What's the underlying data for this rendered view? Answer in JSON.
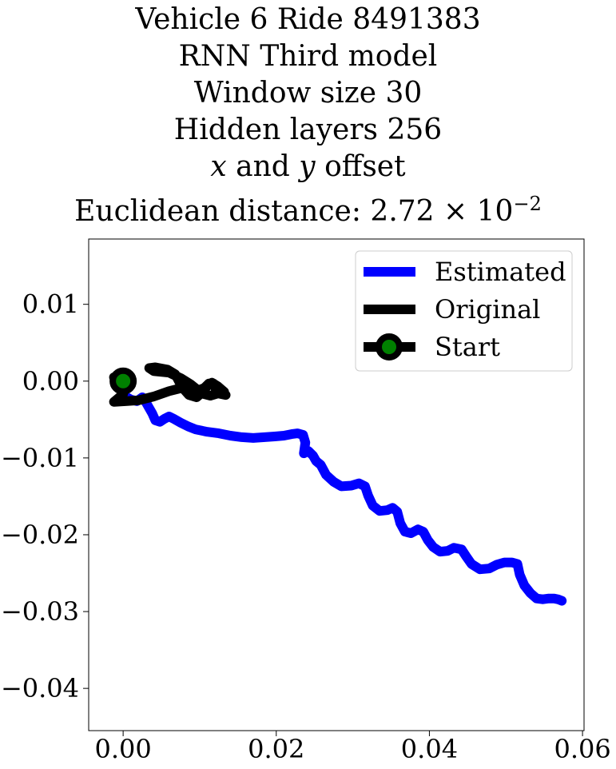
{
  "chart_data": {
    "type": "line",
    "title_lines": [
      "Vehicle 6 Ride 8491383",
      "RNN Third model",
      "Window size 30",
      "Hidden layers 256",
      "x and y offset",
      "Euclidean distance: 2.72 × 10^-2"
    ],
    "title": {
      "vehicle": "Vehicle 6 Ride 8491383",
      "model": "RNN Third model",
      "window": "Window size 30",
      "hidden": "Hidden layers 256",
      "offset_x": "x",
      "offset_and": " and ",
      "offset_y": "y",
      "offset_suffix": " offset",
      "distance_prefix": "Euclidean distance: 2.72 × 10",
      "distance_exp": "−2"
    },
    "xlabel": "",
    "ylabel": "",
    "xlim": [
      -0.0045,
      0.0602
    ],
    "ylim": [
      -0.0455,
      0.0185
    ],
    "xticks": [
      0.0,
      0.02,
      0.04,
      0.06
    ],
    "xtick_labels": [
      "0.00",
      "0.02",
      "0.04",
      "0.06"
    ],
    "yticks": [
      0.01,
      0.0,
      -0.01,
      -0.02,
      -0.03,
      -0.04
    ],
    "ytick_labels": [
      "0.01",
      "0.00",
      "−0.01",
      "−0.02",
      "−0.03",
      "−0.04"
    ],
    "grid": false,
    "legend_position": "top-right",
    "series": [
      {
        "name": "Estimated",
        "color": "#0000ff",
        "points": [
          [
            0.0,
            -0.0018
          ],
          [
            0.001,
            -0.0024
          ],
          [
            0.0018,
            -0.0026
          ],
          [
            0.0025,
            -0.0021
          ],
          [
            0.003,
            -0.0028
          ],
          [
            0.0034,
            -0.0035
          ],
          [
            0.0038,
            -0.0042
          ],
          [
            0.0042,
            -0.0051
          ],
          [
            0.0048,
            -0.0053
          ],
          [
            0.0054,
            -0.0049
          ],
          [
            0.006,
            -0.0046
          ],
          [
            0.0066,
            -0.0049
          ],
          [
            0.0075,
            -0.0054
          ],
          [
            0.0085,
            -0.0059
          ],
          [
            0.0095,
            -0.0063
          ],
          [
            0.011,
            -0.0066
          ],
          [
            0.0125,
            -0.0068
          ],
          [
            0.014,
            -0.0071
          ],
          [
            0.0155,
            -0.0073
          ],
          [
            0.017,
            -0.0074
          ],
          [
            0.0185,
            -0.0073
          ],
          [
            0.0198,
            -0.0072
          ],
          [
            0.021,
            -0.0071
          ],
          [
            0.022,
            -0.0069
          ],
          [
            0.0228,
            -0.0068
          ],
          [
            0.0235,
            -0.007
          ],
          [
            0.0238,
            -0.008
          ],
          [
            0.0236,
            -0.0094
          ],
          [
            0.0242,
            -0.0091
          ],
          [
            0.0248,
            -0.0097
          ],
          [
            0.0252,
            -0.0104
          ],
          [
            0.0258,
            -0.0109
          ],
          [
            0.0265,
            -0.0122
          ],
          [
            0.0275,
            -0.0131
          ],
          [
            0.0285,
            -0.0137
          ],
          [
            0.0298,
            -0.0136
          ],
          [
            0.0308,
            -0.0133
          ],
          [
            0.0316,
            -0.0137
          ],
          [
            0.032,
            -0.0149
          ],
          [
            0.0326,
            -0.0162
          ],
          [
            0.0335,
            -0.0169
          ],
          [
            0.0345,
            -0.0168
          ],
          [
            0.0352,
            -0.0165
          ],
          [
            0.0358,
            -0.017
          ],
          [
            0.0362,
            -0.0185
          ],
          [
            0.0368,
            -0.0196
          ],
          [
            0.0376,
            -0.0198
          ],
          [
            0.0385,
            -0.0193
          ],
          [
            0.0392,
            -0.0196
          ],
          [
            0.0398,
            -0.0207
          ],
          [
            0.0405,
            -0.0216
          ],
          [
            0.0414,
            -0.0222
          ],
          [
            0.0424,
            -0.0221
          ],
          [
            0.0432,
            -0.0217
          ],
          [
            0.0442,
            -0.0219
          ],
          [
            0.0448,
            -0.0228
          ],
          [
            0.0455,
            -0.0238
          ],
          [
            0.0466,
            -0.0245
          ],
          [
            0.0478,
            -0.0244
          ],
          [
            0.0488,
            -0.0239
          ],
          [
            0.0498,
            -0.0236
          ],
          [
            0.0508,
            -0.0236
          ],
          [
            0.0515,
            -0.0238
          ],
          [
            0.0518,
            -0.0252
          ],
          [
            0.0524,
            -0.0266
          ],
          [
            0.0532,
            -0.0276
          ],
          [
            0.054,
            -0.0283
          ],
          [
            0.0548,
            -0.0284
          ],
          [
            0.0556,
            -0.0283
          ],
          [
            0.0563,
            -0.0283
          ],
          [
            0.0568,
            -0.0284
          ],
          [
            0.0573,
            -0.0286
          ]
        ]
      },
      {
        "name": "Original",
        "color": "#000000",
        "points": [
          [
            -0.0012,
            0.0005
          ],
          [
            -0.0006,
            -0.0008
          ],
          [
            0.0,
            -0.0017
          ],
          [
            -0.0012,
            -0.0027
          ],
          [
            0.0005,
            -0.0026
          ],
          [
            0.002,
            -0.0025
          ],
          [
            0.004,
            -0.002
          ],
          [
            0.006,
            -0.0013
          ],
          [
            0.008,
            -0.0008
          ],
          [
            0.0096,
            -0.0012
          ],
          [
            0.0106,
            -0.0017
          ],
          [
            0.0114,
            -0.0019
          ],
          [
            0.0124,
            -0.0016
          ],
          [
            0.0134,
            -0.0018
          ],
          [
            0.0121,
            -0.0011
          ],
          [
            0.0118,
            -0.0003
          ],
          [
            0.0112,
            -0.0003
          ],
          [
            0.0106,
            -0.0009
          ],
          [
            0.0098,
            -0.0012
          ],
          [
            0.0088,
            -0.0004
          ],
          [
            0.0075,
            0.0004
          ],
          [
            0.006,
            0.0011
          ],
          [
            0.004,
            0.0013
          ],
          [
            0.0034,
            0.0017
          ],
          [
            0.0042,
            0.0018
          ],
          [
            0.0058,
            0.0015
          ],
          [
            0.0068,
            0.0009
          ],
          [
            0.0077,
            -0.0008
          ],
          [
            0.0086,
            -0.0018
          ],
          [
            0.0096,
            -0.0021
          ],
          [
            0.0104,
            -0.0014
          ],
          [
            0.011,
            -0.0006
          ],
          [
            0.0116,
            -0.0002
          ],
          [
            0.0124,
            -0.0007
          ],
          [
            0.0132,
            -0.0014
          ]
        ]
      }
    ],
    "start": {
      "name": "Start",
      "x": 0.0,
      "y": 0.0,
      "ring_color": "#000000",
      "fill_color": "#008000"
    }
  }
}
